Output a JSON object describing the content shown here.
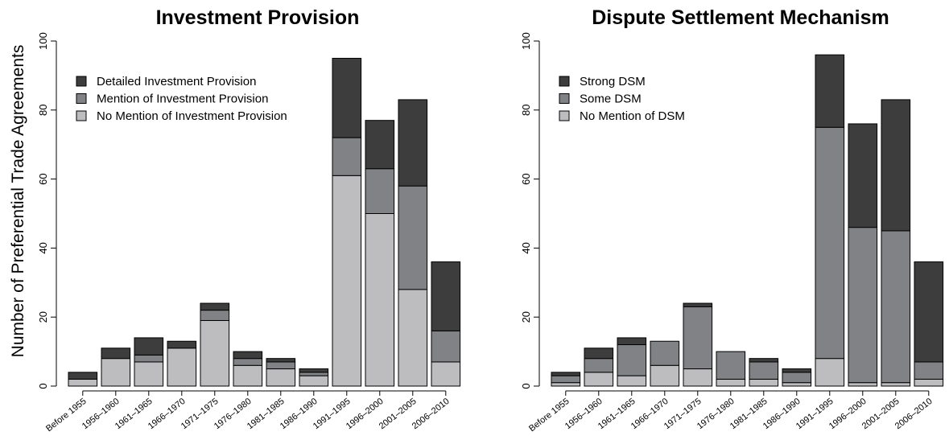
{
  "y_axis_label": "Number of Preferential Trade Agreements",
  "chart_data": [
    {
      "type": "bar",
      "stacked": true,
      "title": "Investment Provision",
      "ylabel": "Number of Preferential Trade Agreements",
      "ylim": [
        0,
        100
      ],
      "yticks": [
        0,
        20,
        40,
        60,
        80,
        100
      ],
      "legend_position": "top-left",
      "categories": [
        "Before 1955",
        "1956–1960",
        "1961–1965",
        "1966–1970",
        "1971–1975",
        "1976–1980",
        "1981–1985",
        "1986–1990",
        "1991–1995",
        "1996–2000",
        "2001–2005",
        "2006–2010"
      ],
      "series": [
        {
          "name": "No Mention of Investment Provision",
          "color": "#bdbdbf",
          "values": [
            2,
            8,
            7,
            11,
            19,
            6,
            5,
            3,
            61,
            50,
            28,
            7
          ]
        },
        {
          "name": "Mention of Investment Provision",
          "color": "#808285",
          "values": [
            0,
            0,
            2,
            0,
            3,
            2,
            2,
            1,
            11,
            13,
            30,
            9
          ]
        },
        {
          "name": "Detailed Investment Provision",
          "color": "#3d3d3d",
          "values": [
            2,
            3,
            5,
            2,
            2,
            2,
            1,
            1,
            23,
            14,
            25,
            20
          ]
        }
      ]
    },
    {
      "type": "bar",
      "stacked": true,
      "title": "Dispute Settlement Mechanism",
      "ylim": [
        0,
        100
      ],
      "yticks": [
        0,
        20,
        40,
        60,
        80,
        100
      ],
      "legend_position": "top-left",
      "categories": [
        "Before 1955",
        "1956–1960",
        "1961–1965",
        "1966–1970",
        "1971–1975",
        "1976–1980",
        "1981–1985",
        "1986–1990",
        "1991–1995",
        "1996–2000",
        "2001–2005",
        "2006–2010"
      ],
      "series": [
        {
          "name": "No Mention of DSM",
          "color": "#bdbdbf",
          "values": [
            1,
            4,
            3,
            6,
            5,
            2,
            2,
            1,
            8,
            1,
            1,
            2
          ]
        },
        {
          "name": "Some DSM",
          "color": "#808285",
          "values": [
            2,
            4,
            9,
            7,
            18,
            8,
            5,
            3,
            67,
            45,
            44,
            5
          ]
        },
        {
          "name": "Strong DSM",
          "color": "#3d3d3d",
          "values": [
            1,
            3,
            2,
            0,
            1,
            0,
            1,
            1,
            21,
            30,
            38,
            29
          ]
        }
      ]
    }
  ]
}
